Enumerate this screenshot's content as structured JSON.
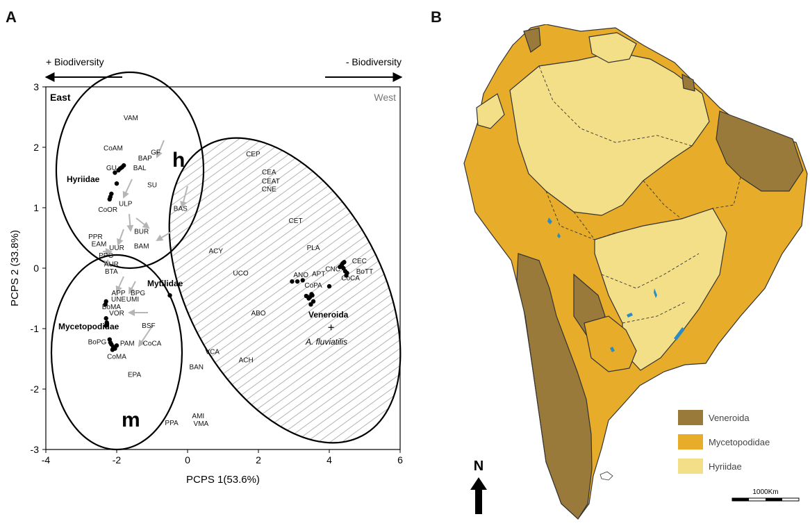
{
  "panels": {
    "a": "A",
    "b": "B"
  },
  "chart_data": {
    "type": "scatter",
    "xlabel": "PCPS 1(53.6%)",
    "ylabel": "PCPS 2 (33.8%)",
    "xlim": [
      -4,
      6
    ],
    "ylim": [
      -3,
      3
    ],
    "xticks": [
      "-4",
      "-2",
      "0",
      "2",
      "4",
      "6"
    ],
    "yticks": [
      "3",
      "2",
      "1",
      "0",
      "-1",
      "-2",
      "-3"
    ],
    "arrow_left": "+ Biodiversity",
    "arrow_right": "- Biodiversity",
    "region_left": "East",
    "region_right": "West",
    "groups": {
      "h": "h",
      "m": "m",
      "hyriidae": "Hyriidae",
      "mytilidae": "Mytilidae",
      "mycetopodidae": "Mycetopodidae",
      "veneroida": "Veneroida",
      "a_fluviatilis": "A. fluviatilis"
    },
    "labels": [
      {
        "t": "VAM",
        "x": -1.6,
        "y": 2.45
      },
      {
        "t": "CoAM",
        "x": -2.1,
        "y": 1.95
      },
      {
        "t": "BAP",
        "x": -1.2,
        "y": 1.78
      },
      {
        "t": "GF",
        "x": -0.9,
        "y": 1.88
      },
      {
        "t": "BAL",
        "x": -1.35,
        "y": 1.62
      },
      {
        "t": "GU",
        "x": -2.15,
        "y": 1.62
      },
      {
        "t": "SU",
        "x": -1.0,
        "y": 1.34
      },
      {
        "t": "ULP",
        "x": -1.75,
        "y": 1.03
      },
      {
        "t": "CoOR",
        "x": -2.25,
        "y": 0.93
      },
      {
        "t": "BAS",
        "x": -0.2,
        "y": 0.95
      },
      {
        "t": "BUR",
        "x": -1.3,
        "y": 0.57
      },
      {
        "t": "PPR",
        "x": -2.6,
        "y": 0.48
      },
      {
        "t": "BAM",
        "x": -1.3,
        "y": 0.33
      },
      {
        "t": "EAM",
        "x": -2.5,
        "y": 0.36
      },
      {
        "t": "UUR",
        "x": -2.0,
        "y": 0.3
      },
      {
        "t": "PPG",
        "x": -2.3,
        "y": 0.17
      },
      {
        "t": "AUR",
        "x": -2.15,
        "y": 0.03
      },
      {
        "t": "BTA",
        "x": -2.15,
        "y": -0.09
      },
      {
        "t": "APP",
        "x": -1.95,
        "y": -0.45
      },
      {
        "t": "BPG",
        "x": -1.4,
        "y": -0.45
      },
      {
        "t": "UNE",
        "x": -1.95,
        "y": -0.55
      },
      {
        "t": "UMI",
        "x": -1.55,
        "y": -0.55
      },
      {
        "t": "BoMA",
        "x": -2.15,
        "y": -0.68
      },
      {
        "t": "VOR",
        "x": -2.0,
        "y": -0.78
      },
      {
        "t": "BSF",
        "x": -1.1,
        "y": -0.99
      },
      {
        "t": "BoPG",
        "x": -2.55,
        "y": -1.26
      },
      {
        "t": "PAM",
        "x": -1.7,
        "y": -1.28
      },
      {
        "t": "CoCA",
        "x": -1.0,
        "y": -1.28
      },
      {
        "t": "CoMA",
        "x": -2.0,
        "y": -1.5
      },
      {
        "t": "EPA",
        "x": -1.5,
        "y": -1.8
      },
      {
        "t": "PPA",
        "x": -0.45,
        "y": -2.6
      },
      {
        "t": "AMI",
        "x": 0.3,
        "y": -2.48
      },
      {
        "t": "VMA",
        "x": 0.38,
        "y": -2.61
      },
      {
        "t": "BAN",
        "x": 0.25,
        "y": -1.67
      },
      {
        "t": "VCA",
        "x": 0.7,
        "y": -1.42
      },
      {
        "t": "ACH",
        "x": 1.65,
        "y": -1.56
      },
      {
        "t": "ABO",
        "x": 2.0,
        "y": -0.78
      },
      {
        "t": "UCO",
        "x": 1.5,
        "y": -0.12
      },
      {
        "t": "ACY",
        "x": 0.8,
        "y": 0.25
      },
      {
        "t": "CEP",
        "x": 1.85,
        "y": 1.85
      },
      {
        "t": "CEA",
        "x": 2.3,
        "y": 1.55
      },
      {
        "t": "CEAT",
        "x": 2.35,
        "y": 1.4
      },
      {
        "t": "CNE",
        "x": 2.3,
        "y": 1.27
      },
      {
        "t": "CET",
        "x": 3.05,
        "y": 0.75
      },
      {
        "t": "PLA",
        "x": 3.55,
        "y": 0.3
      },
      {
        "t": "ANO",
        "x": 3.2,
        "y": -0.15
      },
      {
        "t": "APT",
        "x": 3.7,
        "y": -0.13
      },
      {
        "t": "CNC",
        "x": 4.1,
        "y": -0.05
      },
      {
        "t": "CoPA",
        "x": 3.55,
        "y": -0.32
      },
      {
        "t": "CEC",
        "x": 4.85,
        "y": 0.08
      },
      {
        "t": "CoCA",
        "x": 4.6,
        "y": -0.2
      },
      {
        "t": "BoTT",
        "x": 5.0,
        "y": -0.09
      }
    ],
    "points": [
      {
        "x": -1.9,
        "y": 1.65
      },
      {
        "x": -1.85,
        "y": 1.67
      },
      {
        "x": -1.8,
        "y": 1.7
      },
      {
        "x": -1.95,
        "y": 1.62
      },
      {
        "x": -2.05,
        "y": 1.58
      },
      {
        "x": -2.0,
        "y": 1.4
      },
      {
        "x": -2.15,
        "y": 1.23
      },
      {
        "x": -2.2,
        "y": 1.14
      },
      {
        "x": -2.18,
        "y": 1.18
      },
      {
        "x": -2.3,
        "y": -0.55
      },
      {
        "x": -2.32,
        "y": -0.6
      },
      {
        "x": -2.3,
        "y": -0.83
      },
      {
        "x": -2.28,
        "y": -0.9
      },
      {
        "x": -2.3,
        "y": -0.95
      },
      {
        "x": -2.2,
        "y": -1.18
      },
      {
        "x": -2.18,
        "y": -1.23
      },
      {
        "x": -2.15,
        "y": -1.26
      },
      {
        "x": -2.1,
        "y": -1.3
      },
      {
        "x": -2.05,
        "y": -1.33
      },
      {
        "x": -2.0,
        "y": -1.28
      },
      {
        "x": -2.12,
        "y": -1.35
      },
      {
        "x": -0.5,
        "y": -0.45
      },
      {
        "x": 2.95,
        "y": -0.22
      },
      {
        "x": 3.1,
        "y": -0.22
      },
      {
        "x": 3.25,
        "y": -0.2
      },
      {
        "x": 3.35,
        "y": -0.46
      },
      {
        "x": 3.45,
        "y": -0.48
      },
      {
        "x": 3.5,
        "y": -0.43
      },
      {
        "x": 3.42,
        "y": -0.5
      },
      {
        "x": 3.55,
        "y": -0.55
      },
      {
        "x": 3.48,
        "y": -0.6
      },
      {
        "x": 3.52,
        "y": -0.45
      },
      {
        "x": 4.35,
        "y": 0.05
      },
      {
        "x": 4.38,
        "y": 0.08
      },
      {
        "x": 4.42,
        "y": 0.1
      },
      {
        "x": 4.4,
        "y": 0.0
      },
      {
        "x": 4.45,
        "y": -0.05
      },
      {
        "x": 4.48,
        "y": -0.12
      },
      {
        "x": 4.3,
        "y": 0.02
      },
      {
        "x": 4.5,
        "y": -0.08
      },
      {
        "x": 4.0,
        "y": -0.3
      }
    ],
    "cross": {
      "x": 4.05,
      "y": -0.98
    }
  },
  "map": {
    "legend": [
      {
        "label": "Veneroida",
        "color": "#9a7a3a"
      },
      {
        "label": "Mycetopodidae",
        "color": "#e6ac2a"
      },
      {
        "label": "Hyriidae",
        "color": "#f2df88"
      }
    ],
    "north": "N",
    "scale": "1000Km",
    "colors": {
      "water": "#2b8cc4"
    }
  }
}
